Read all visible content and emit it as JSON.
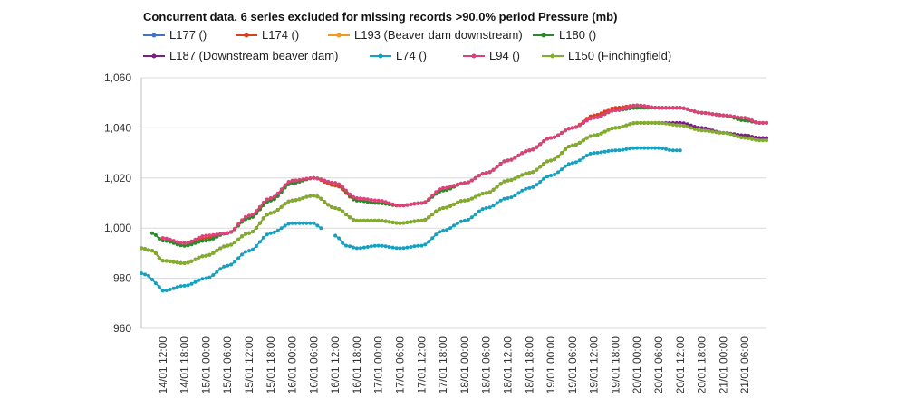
{
  "chart_data": {
    "type": "line",
    "title": "Concurrent data.    6 series excluded for missing records >90.0% period Pressure (mb)",
    "xlabel": "",
    "ylabel": "",
    "ylim": [
      960,
      1060
    ],
    "yticks": [
      960,
      980,
      1000,
      1020,
      1040,
      1060
    ],
    "ytick_labels": [
      "960",
      "980",
      "1,000",
      "1,020",
      "1,040",
      "1,060"
    ],
    "grid": true,
    "x_unit": "hours since 14/01 06:00",
    "xlim": [
      0,
      174
    ],
    "x_ticks": [
      {
        "x": 6,
        "label": "14/01 12:00"
      },
      {
        "x": 12,
        "label": "14/01 18:00"
      },
      {
        "x": 18,
        "label": "15/01 00:00"
      },
      {
        "x": 24,
        "label": "15/01 06:00"
      },
      {
        "x": 30,
        "label": "15/01 12:00"
      },
      {
        "x": 36,
        "label": "15/01 18:00"
      },
      {
        "x": 42,
        "label": "16/01 00:00"
      },
      {
        "x": 48,
        "label": "16/01 06:00"
      },
      {
        "x": 54,
        "label": "16/01 12:00"
      },
      {
        "x": 60,
        "label": "16/01 18:00"
      },
      {
        "x": 66,
        "label": "17/01 00:00"
      },
      {
        "x": 72,
        "label": "17/01 06:00"
      },
      {
        "x": 78,
        "label": "17/01 12:00"
      },
      {
        "x": 84,
        "label": "17/01 18:00"
      },
      {
        "x": 90,
        "label": "18/01 00:00"
      },
      {
        "x": 96,
        "label": "18/01 06:00"
      },
      {
        "x": 102,
        "label": "18/01 12:00"
      },
      {
        "x": 108,
        "label": "18/01 18:00"
      },
      {
        "x": 114,
        "label": "19/01 00:00"
      },
      {
        "x": 120,
        "label": "19/01 06:00"
      },
      {
        "x": 126,
        "label": "19/01 12:00"
      },
      {
        "x": 132,
        "label": "19/01 18:00"
      },
      {
        "x": 138,
        "label": "20/01 00:00"
      },
      {
        "x": 144,
        "label": "20/01 06:00"
      },
      {
        "x": 150,
        "label": "20/01 12:00"
      },
      {
        "x": 156,
        "label": "20/01 18:00"
      },
      {
        "x": 162,
        "label": "21/01 00:00"
      },
      {
        "x": 168,
        "label": "21/01 06:00"
      }
    ],
    "legend_position": "top",
    "series": [
      {
        "name": "L177 ()",
        "color": "#4472c4",
        "x": [
          0,
          3,
          6,
          12,
          18,
          24,
          30,
          36,
          42,
          48,
          54,
          60,
          66,
          72,
          78,
          84,
          90,
          96,
          102,
          108,
          114,
          120,
          126,
          132,
          138,
          144,
          150,
          156,
          162,
          168,
          172,
          174
        ],
        "values": [
          null,
          null,
          996,
          993,
          996,
          998,
          1004,
          1011,
          1018,
          1020,
          1017,
          1011,
          1010,
          1009,
          1010,
          1015,
          1018,
          1022,
          1027,
          1031,
          1036,
          1040,
          1044,
          1047,
          1048,
          1048,
          1048,
          1046,
          1045,
          1043,
          1042,
          null
        ]
      },
      {
        "name": "L174 ()",
        "color": "#d9411e",
        "x": [
          0,
          3,
          6,
          12,
          18,
          24,
          30,
          36,
          42,
          48,
          54,
          60,
          66,
          72,
          78,
          84,
          90,
          96,
          102,
          108,
          114,
          120,
          126,
          132,
          138,
          144,
          150,
          156,
          162,
          168,
          172,
          174
        ],
        "values": [
          null,
          null,
          996,
          993,
          996,
          998,
          1004,
          1011,
          1018,
          1020,
          1017,
          1011,
          1010,
          1009,
          1010,
          1015,
          1018,
          1022,
          1027,
          1031,
          1036,
          1040,
          1045,
          1048,
          1049,
          1048,
          1048,
          1046,
          1045,
          1043,
          1042,
          1042
        ]
      },
      {
        "name": "L193 (Beaver dam downstream)",
        "color": "#f29a1c",
        "x": [
          0,
          3,
          6,
          12,
          18,
          24,
          30,
          36,
          42,
          48,
          54,
          60,
          66,
          72,
          78,
          84,
          90,
          96,
          102,
          108,
          114,
          120,
          126,
          132,
          138,
          144,
          150,
          156,
          162,
          168,
          172,
          174
        ],
        "values": [
          992,
          991,
          987,
          986,
          989,
          993,
          998,
          1006,
          1011,
          1013,
          1008,
          1003,
          1003,
          1002,
          1003,
          1008,
          1011,
          1014,
          1019,
          1022,
          1027,
          1033,
          1037,
          1040,
          1042,
          1042,
          1041,
          1039,
          1038,
          1037,
          1036,
          1036
        ]
      },
      {
        "name": "L180 ()",
        "color": "#2a8a2a",
        "x": [
          0,
          3,
          6,
          12,
          18,
          24,
          30,
          36,
          42,
          48,
          54,
          60,
          66,
          72,
          78,
          84,
          90,
          96,
          102,
          108,
          114,
          120,
          126,
          132,
          138,
          144,
          150,
          156,
          162,
          168,
          172,
          174
        ],
        "values": [
          null,
          998,
          995,
          993,
          995,
          998,
          1004,
          1011,
          1018,
          1020,
          1018,
          1011,
          1010,
          1009,
          1010,
          1015,
          1018,
          1022,
          1027,
          1031,
          1036,
          1040,
          1044,
          1047,
          1048,
          1048,
          1048,
          1046,
          1045,
          1043,
          1042,
          1042
        ]
      },
      {
        "name": "L187 (Downstream beaver dam)",
        "color": "#7b1f86",
        "x": [
          0,
          3,
          6,
          12,
          18,
          24,
          30,
          36,
          42,
          48,
          54,
          60,
          66,
          72,
          78,
          84,
          90,
          96,
          102,
          108,
          114,
          120,
          126,
          132,
          138,
          144,
          150,
          156,
          162,
          168,
          172,
          174
        ],
        "values": [
          992,
          991,
          987,
          986,
          989,
          993,
          998,
          1006,
          1011,
          1013,
          1008,
          1003,
          1003,
          1002,
          1003,
          1008,
          1011,
          1014,
          1019,
          1022,
          1027,
          1033,
          1037,
          1040,
          1042,
          1042,
          1042,
          1040,
          1038,
          1037,
          1036,
          1036
        ]
      },
      {
        "name": "L74 ()",
        "color": "#169fbf",
        "x": [
          0,
          2,
          4,
          6,
          12,
          18,
          24,
          30,
          36,
          42,
          48,
          50,
          52,
          54,
          57,
          60,
          66,
          72,
          78,
          84,
          90,
          96,
          102,
          108,
          114,
          120,
          126,
          132,
          138,
          144,
          148,
          150
        ],
        "values": [
          982,
          981,
          978,
          975,
          977,
          980,
          985,
          991,
          998,
          1002,
          1002,
          1000,
          null,
          997,
          993,
          992,
          993,
          992,
          993,
          999,
          1003,
          1008,
          1012,
          1016,
          1021,
          1026,
          1030,
          1031,
          1032,
          1032,
          1031,
          1031
        ]
      },
      {
        "name": "L94 ()",
        "color": "#e0407a",
        "x": [
          0,
          3,
          6,
          12,
          18,
          24,
          30,
          36,
          42,
          48,
          54,
          60,
          66,
          72,
          78,
          84,
          90,
          96,
          102,
          108,
          114,
          120,
          126,
          132,
          138,
          144,
          150,
          156,
          162,
          168,
          172,
          174
        ],
        "values": [
          null,
          null,
          996,
          994,
          997,
          998,
          1005,
          1012,
          1019,
          1020,
          1018,
          1012,
          1011,
          1009,
          1010,
          1016,
          1018,
          1022,
          1027,
          1031,
          1036,
          1040,
          1044,
          1047,
          1049,
          1048,
          1048,
          1046,
          1045,
          1044,
          1042,
          1042
        ]
      },
      {
        "name": "L150 (Finchingfield)",
        "color": "#7fae2a",
        "x": [
          0,
          3,
          6,
          12,
          18,
          24,
          30,
          36,
          42,
          48,
          54,
          60,
          66,
          72,
          78,
          84,
          90,
          96,
          102,
          108,
          114,
          120,
          126,
          132,
          138,
          144,
          150,
          156,
          162,
          168,
          172,
          174
        ],
        "values": [
          992,
          991,
          987,
          986,
          989,
          993,
          998,
          1006,
          1011,
          1013,
          1008,
          1003,
          1003,
          1002,
          1003,
          1008,
          1011,
          1014,
          1019,
          1022,
          1027,
          1033,
          1037,
          1040,
          1042,
          1042,
          1041,
          1039,
          1038,
          1036,
          1035,
          1035
        ]
      }
    ]
  }
}
